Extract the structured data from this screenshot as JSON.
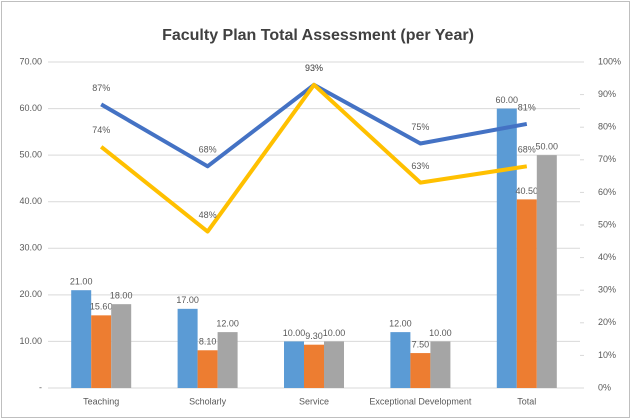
{
  "chart_data": {
    "type": "combo",
    "title": "Faculty Plan Total Assessment (per Year)",
    "categories": [
      "Teaching",
      "Scholarly",
      "Service",
      "Exceptional Development",
      "Total"
    ],
    "ylim": [
      0,
      70
    ],
    "yticks": [
      {
        "value": 0,
        "label": "-"
      },
      {
        "value": 10,
        "label": "10.00"
      },
      {
        "value": 20,
        "label": "20.00"
      },
      {
        "value": 30,
        "label": "30.00"
      },
      {
        "value": 40,
        "label": "40.00"
      },
      {
        "value": 50,
        "label": "50.00"
      },
      {
        "value": 60,
        "label": "60.00"
      },
      {
        "value": 70,
        "label": "70.00"
      }
    ],
    "y2lim": [
      0,
      100
    ],
    "y2ticks": [
      {
        "value": 0,
        "label": "0%"
      },
      {
        "value": 10,
        "label": "10%"
      },
      {
        "value": 20,
        "label": "20%"
      },
      {
        "value": 30,
        "label": "30%"
      },
      {
        "value": 40,
        "label": "40%"
      },
      {
        "value": 50,
        "label": "50%"
      },
      {
        "value": 60,
        "label": "60%"
      },
      {
        "value": 70,
        "label": "70%"
      },
      {
        "value": 80,
        "label": "80%"
      },
      {
        "value": 90,
        "label": "90%"
      },
      {
        "value": 100,
        "label": "100%"
      }
    ],
    "grid": true,
    "series": [
      {
        "type": "bar",
        "color": "#5b9bd5",
        "values": [
          21,
          17,
          10,
          12,
          60
        ],
        "value_labels": [
          "21.00",
          "17.00",
          "10.00",
          "12.00",
          "60.00"
        ]
      },
      {
        "type": "bar",
        "color": "#ed7d31",
        "values": [
          15.6,
          8.1,
          9.3,
          7.5,
          40.5
        ],
        "value_labels": [
          "15.60",
          "8.10",
          "9.30",
          "7.50",
          "40.50"
        ]
      },
      {
        "type": "bar",
        "color": "#a5a5a5",
        "values": [
          18,
          12,
          10,
          10,
          50
        ],
        "value_labels": [
          "18.00",
          "12.00",
          "10.00",
          "10.00",
          "50.00"
        ]
      },
      {
        "type": "line",
        "axis": "y2",
        "color": "#4472c4",
        "values": [
          87,
          68,
          93,
          75,
          81
        ],
        "value_labels": [
          "87%",
          "68%",
          "93%",
          "75%",
          "81%"
        ]
      },
      {
        "type": "line",
        "axis": "y2",
        "color": "#ffc000",
        "values": [
          74,
          48,
          93,
          63,
          68
        ],
        "value_labels": [
          "74%",
          "48%",
          "93%",
          "63%",
          "68%"
        ]
      }
    ]
  }
}
